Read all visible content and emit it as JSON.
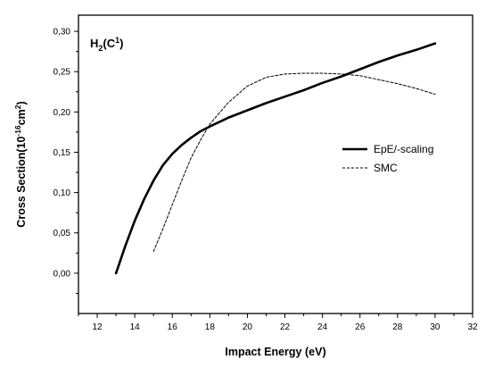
{
  "chart_data": {
    "type": "line",
    "title_parts": {
      "base": "H",
      "sub": "2",
      "mid": "(C",
      "sup": "1",
      "end": ")"
    },
    "xlabel": "Impact Energy (eV)",
    "ylabel_parts": {
      "base": "Cross Section(10",
      "sup1": "-16",
      "mid": "cm",
      "sup2": "2",
      "end": ")"
    },
    "xlim": [
      11,
      32
    ],
    "ylim": [
      -0.05,
      0.32
    ],
    "xticks": [
      12,
      14,
      16,
      18,
      20,
      22,
      24,
      26,
      28,
      30,
      32
    ],
    "xtick_labels": [
      "12",
      "14",
      "16",
      "18",
      "20",
      "22",
      "24",
      "26",
      "28",
      "30",
      "32"
    ],
    "yticks": [
      0.0,
      0.05,
      0.1,
      0.15,
      0.2,
      0.25,
      0.3
    ],
    "ytick_labels": [
      "0,00",
      "0,05",
      "0,10",
      "0,15",
      "0,20",
      "0,25",
      "0,30"
    ],
    "grid": false,
    "legend_position": "right",
    "series": [
      {
        "name": "EpE/-scaling",
        "style": "solid",
        "color": "#000000",
        "x": [
          13,
          13.5,
          14,
          14.5,
          15,
          15.5,
          16,
          16.5,
          17,
          17.5,
          18,
          19,
          20,
          21,
          22,
          23,
          24,
          25,
          26,
          27,
          28,
          29,
          30
        ],
        "y": [
          0.0,
          0.034,
          0.065,
          0.092,
          0.115,
          0.134,
          0.148,
          0.159,
          0.168,
          0.176,
          0.182,
          0.193,
          0.202,
          0.211,
          0.219,
          0.227,
          0.236,
          0.244,
          0.253,
          0.262,
          0.27,
          0.277,
          0.285
        ]
      },
      {
        "name": "SMC",
        "style": "dashed",
        "color": "#000000",
        "x": [
          15,
          15.5,
          16,
          16.5,
          17,
          17.5,
          18,
          19,
          20,
          21,
          22,
          23,
          24,
          25,
          26,
          27,
          28,
          29,
          30
        ],
        "y": [
          0.027,
          0.055,
          0.085,
          0.115,
          0.143,
          0.165,
          0.185,
          0.212,
          0.232,
          0.243,
          0.247,
          0.248,
          0.248,
          0.247,
          0.245,
          0.24,
          0.235,
          0.229,
          0.222
        ]
      }
    ]
  }
}
